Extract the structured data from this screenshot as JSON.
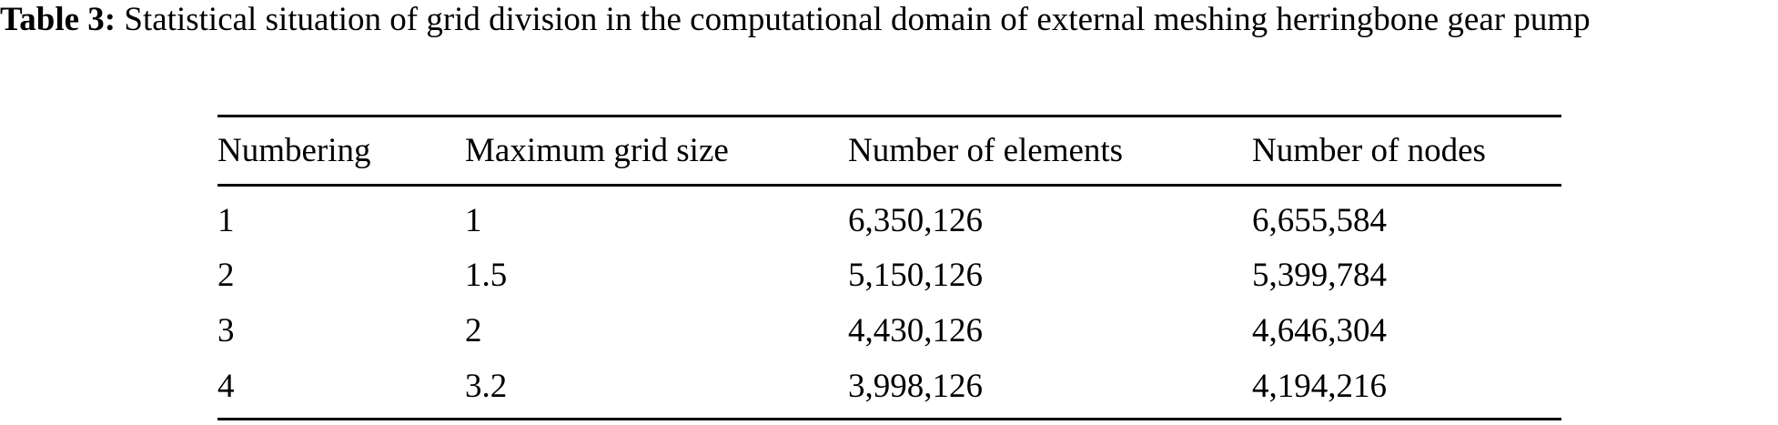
{
  "caption": {
    "label": "Table 3:",
    "text": "Statistical situation of grid division in the computational domain of external meshing herringbone gear pump"
  },
  "table": {
    "headers": [
      "Numbering",
      "Maximum grid size",
      "Number of elements",
      "Number of nodes"
    ],
    "rows": [
      [
        "1",
        "1",
        "6,350,126",
        "6,655,584"
      ],
      [
        "2",
        "1.5",
        "5,150,126",
        "5,399,784"
      ],
      [
        "3",
        "2",
        "4,430,126",
        "4,646,304"
      ],
      [
        "4",
        "3.2",
        "3,998,126",
        "4,194,216"
      ]
    ]
  }
}
